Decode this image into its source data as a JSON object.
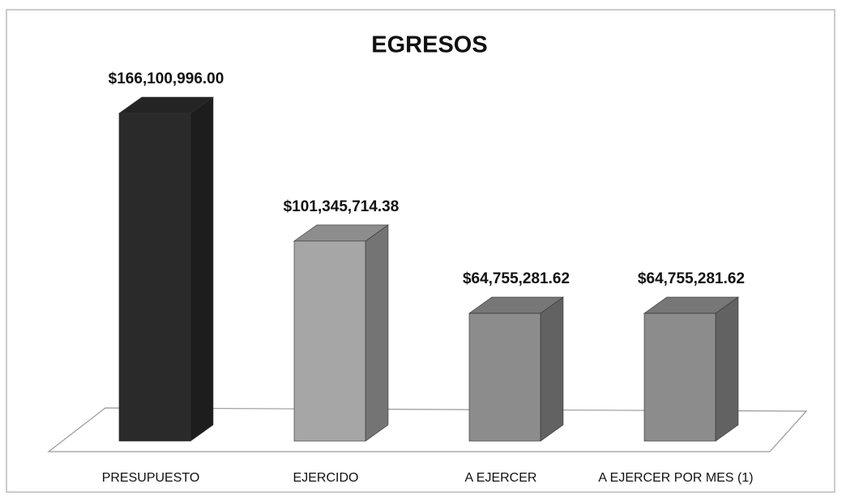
{
  "chart_data": {
    "type": "bar",
    "title": "EGRESOS",
    "categories": [
      "PRESUPUESTO",
      "EJERCIDO",
      "A EJERCER",
      "A EJERCER POR MES (1)"
    ],
    "values": [
      166100996.0,
      101345714.38,
      64755281.62,
      64755281.62
    ],
    "value_labels": [
      "$166,100,996.00",
      "$101,345,714.38",
      "$64,755,281.62",
      "$64,755,281.62"
    ],
    "colors": [
      "#2a2a2a",
      "#a6a6a6",
      "#8c8c8c",
      "#8c8c8c"
    ]
  }
}
